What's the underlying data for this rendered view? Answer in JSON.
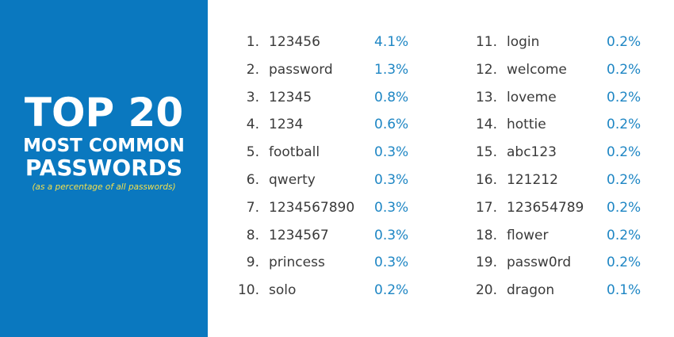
{
  "title": {
    "main": "TOP 20",
    "sub1": "MOST COMMON",
    "sub2": "PASSWORDS",
    "note": "(as a percentage of all passwords)"
  },
  "colors": {
    "panel": "#0a78bf",
    "note": "#f4e04d",
    "percent": "#1e86c4",
    "text": "#3a3a3a"
  },
  "list_a": [
    {
      "rank": "1.",
      "word": "123456",
      "pct": "4.1%"
    },
    {
      "rank": "2.",
      "word": "password",
      "pct": "1.3%"
    },
    {
      "rank": "3.",
      "word": "12345",
      "pct": "0.8%"
    },
    {
      "rank": "4.",
      "word": "1234",
      "pct": "0.6%"
    },
    {
      "rank": "5.",
      "word": "football",
      "pct": "0.3%"
    },
    {
      "rank": "6.",
      "word": "qwerty",
      "pct": "0.3%"
    },
    {
      "rank": "7.",
      "word": "1234567890",
      "pct": "0.3%"
    },
    {
      "rank": "8.",
      "word": "1234567",
      "pct": "0.3%"
    },
    {
      "rank": "9.",
      "word": "princess",
      "pct": "0.3%"
    },
    {
      "rank": "10.",
      "word": "solo",
      "pct": "0.2%"
    }
  ],
  "list_b": [
    {
      "rank": "11.",
      "word": "login",
      "pct": "0.2%"
    },
    {
      "rank": "12.",
      "word": "welcome",
      "pct": "0.2%"
    },
    {
      "rank": "13.",
      "word": "loveme",
      "pct": "0.2%"
    },
    {
      "rank": "14.",
      "word": "hottie",
      "pct": "0.2%"
    },
    {
      "rank": "15.",
      "word": "abc123",
      "pct": "0.2%"
    },
    {
      "rank": "16.",
      "word": "121212",
      "pct": "0.2%"
    },
    {
      "rank": "17.",
      "word": "123654789",
      "pct": "0.2%"
    },
    {
      "rank": "18.",
      "word": "flower",
      "pct": "0.2%"
    },
    {
      "rank": "19.",
      "word": "passw0rd",
      "pct": "0.2%"
    },
    {
      "rank": "20.",
      "word": "dragon",
      "pct": "0.1%"
    }
  ]
}
